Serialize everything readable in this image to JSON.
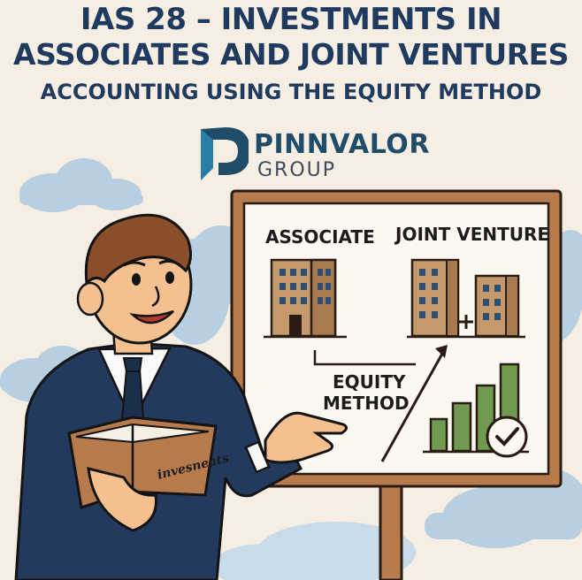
{
  "header": {
    "title_line1": "IAS 28 – INVESTMENTS IN",
    "title_line2": "ASSOCIATES AND JOINT VENTURES",
    "subtitle": "ACCOUNTING USING THE EQUITY METHOD"
  },
  "brand": {
    "name": "PINNVALOR",
    "sub": "GROUP",
    "color_primary": "#1f4c68",
    "color_accent": "#2a7fa6"
  },
  "board": {
    "associate_label": "ASSOCIATE",
    "joint_venture_label": "JOINT VENTURE",
    "method_line1": "EQUITY",
    "method_line2": "METHOD",
    "frame_color": "#b77a4c"
  },
  "presenter": {
    "book_text": "invesneats",
    "suit_color": "#233a5e"
  },
  "colors": {
    "background": "#f6ede3",
    "cloud": "#b7cfe0",
    "building": "#c49a6c",
    "bar": "#6f9a4f"
  },
  "icons": [
    "building-icon",
    "plus-icon",
    "growth-arrow-icon",
    "bar-chart-icon",
    "checkmark-icon",
    "open-book-icon"
  ]
}
